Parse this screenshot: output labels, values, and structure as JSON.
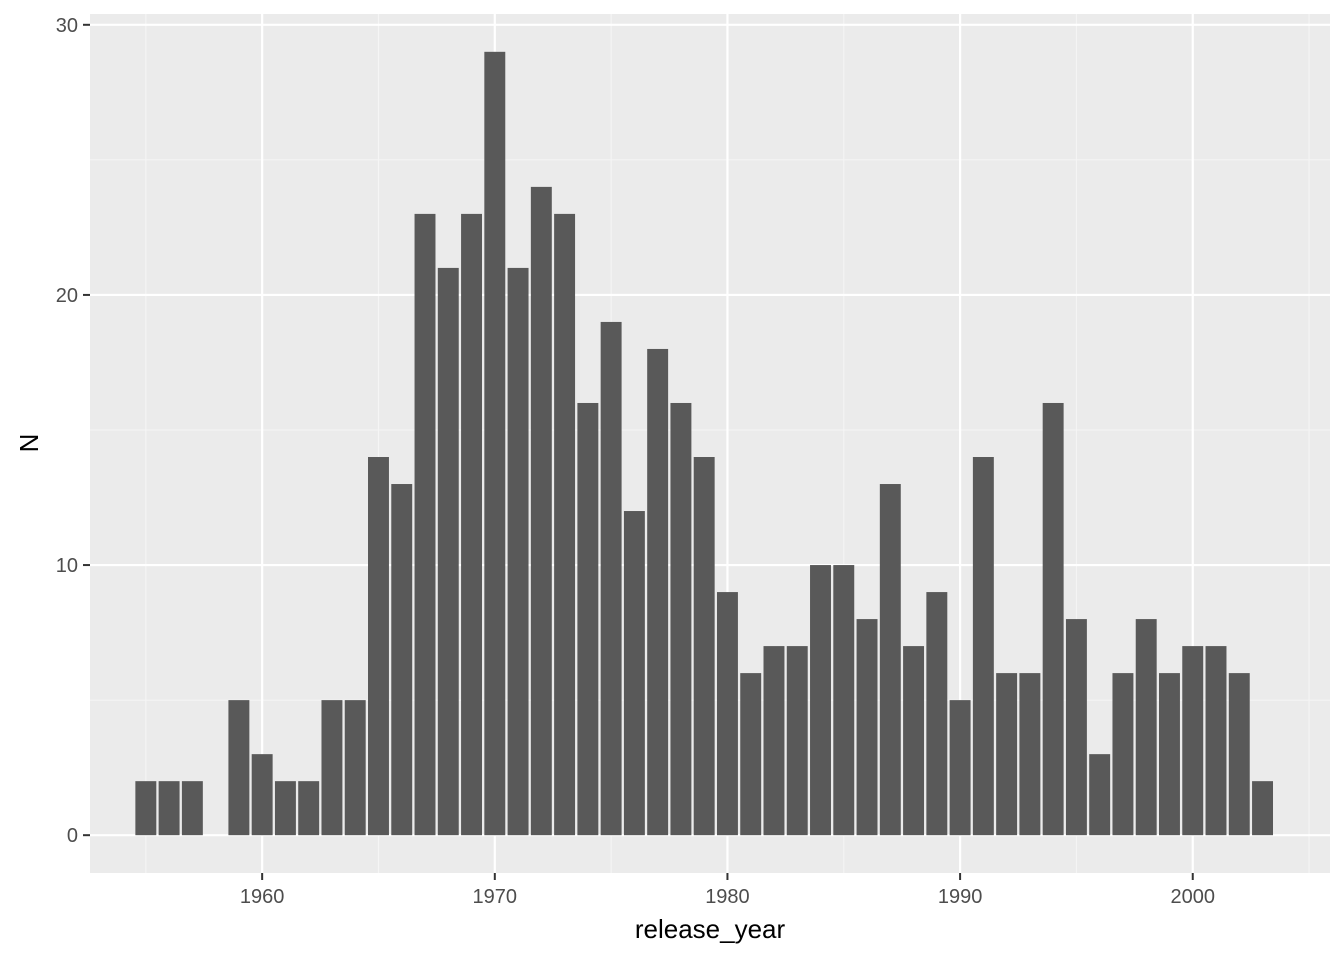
{
  "chart_data": {
    "type": "bar",
    "title": "",
    "xlabel": "release_year",
    "ylabel": "N",
    "x": [
      1955,
      1956,
      1957,
      1959,
      1960,
      1961,
      1962,
      1963,
      1964,
      1965,
      1966,
      1967,
      1968,
      1969,
      1970,
      1971,
      1972,
      1973,
      1974,
      1975,
      1976,
      1977,
      1978,
      1979,
      1980,
      1981,
      1982,
      1983,
      1984,
      1985,
      1986,
      1987,
      1988,
      1989,
      1990,
      1991,
      1992,
      1993,
      1994,
      1995,
      1996,
      1997,
      1998,
      1999,
      2000,
      2001,
      2002,
      2003
    ],
    "values": [
      2,
      2,
      2,
      5,
      3,
      2,
      2,
      5,
      5,
      14,
      13,
      23,
      21,
      23,
      29,
      21,
      24,
      23,
      16,
      19,
      12,
      18,
      16,
      14,
      9,
      6,
      7,
      7,
      10,
      10,
      8,
      13,
      7,
      9,
      5,
      14,
      6,
      6,
      16,
      8,
      3,
      6,
      8,
      6,
      7,
      7,
      6,
      2
    ],
    "xlim": [
      1952.6,
      2005.9
    ],
    "ylim": [
      -1.4,
      30.4
    ],
    "x_ticks": [
      1960,
      1970,
      1980,
      1990,
      2000
    ],
    "x_tick_labels": [
      "1960",
      "1970",
      "1980",
      "1990",
      "2000"
    ],
    "y_ticks": [
      0,
      10,
      20,
      30
    ],
    "y_tick_labels": [
      "0",
      "10",
      "20",
      "30"
    ],
    "grid": true,
    "legend": "none",
    "colors": {
      "bar": "#595959",
      "panel": "#ebebeb",
      "grid_major": "#ffffff",
      "grid_minor": "#f5f5f5",
      "tick": "#333333"
    }
  }
}
